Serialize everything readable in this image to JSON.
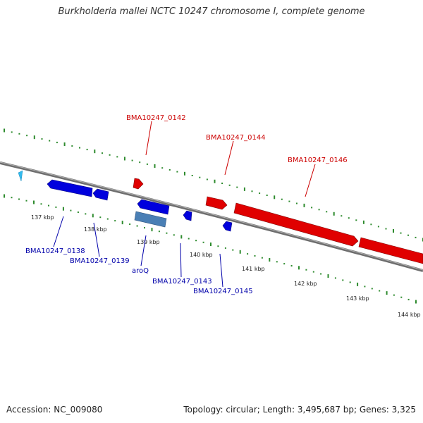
{
  "title": "Burkholderia mallei NCTC 10247 chromosome I, complete genome",
  "footer": {
    "accession": "Accession: NC_009080",
    "summary": "Topology: circular; Length: 3,495,687 bp; Genes: 3,325"
  },
  "colors": {
    "backbone": "#7a7a7a",
    "forward_gene": "#e00000",
    "reverse_gene": "#0000dd",
    "rna_gene": "#4a7fb5",
    "partial_gene": "#33bbee",
    "forward_label": "#cc0000",
    "reverse_label": "#0000aa",
    "tick": "#2e8b2e"
  },
  "tick_labels": [
    "137 kbp",
    "138 kbp",
    "139 kbp",
    "140 kbp",
    "141 kbp",
    "142 kbp",
    "143 kbp",
    "144 kbp"
  ],
  "forward_genes": [
    "BMA10247_0142",
    "BMA10247_0144",
    "BMA10247_0146"
  ],
  "reverse_genes": [
    "BMA10247_0138",
    "BMA10247_0139",
    "aroQ",
    "BMA10247_0143",
    "BMA10247_0145"
  ]
}
